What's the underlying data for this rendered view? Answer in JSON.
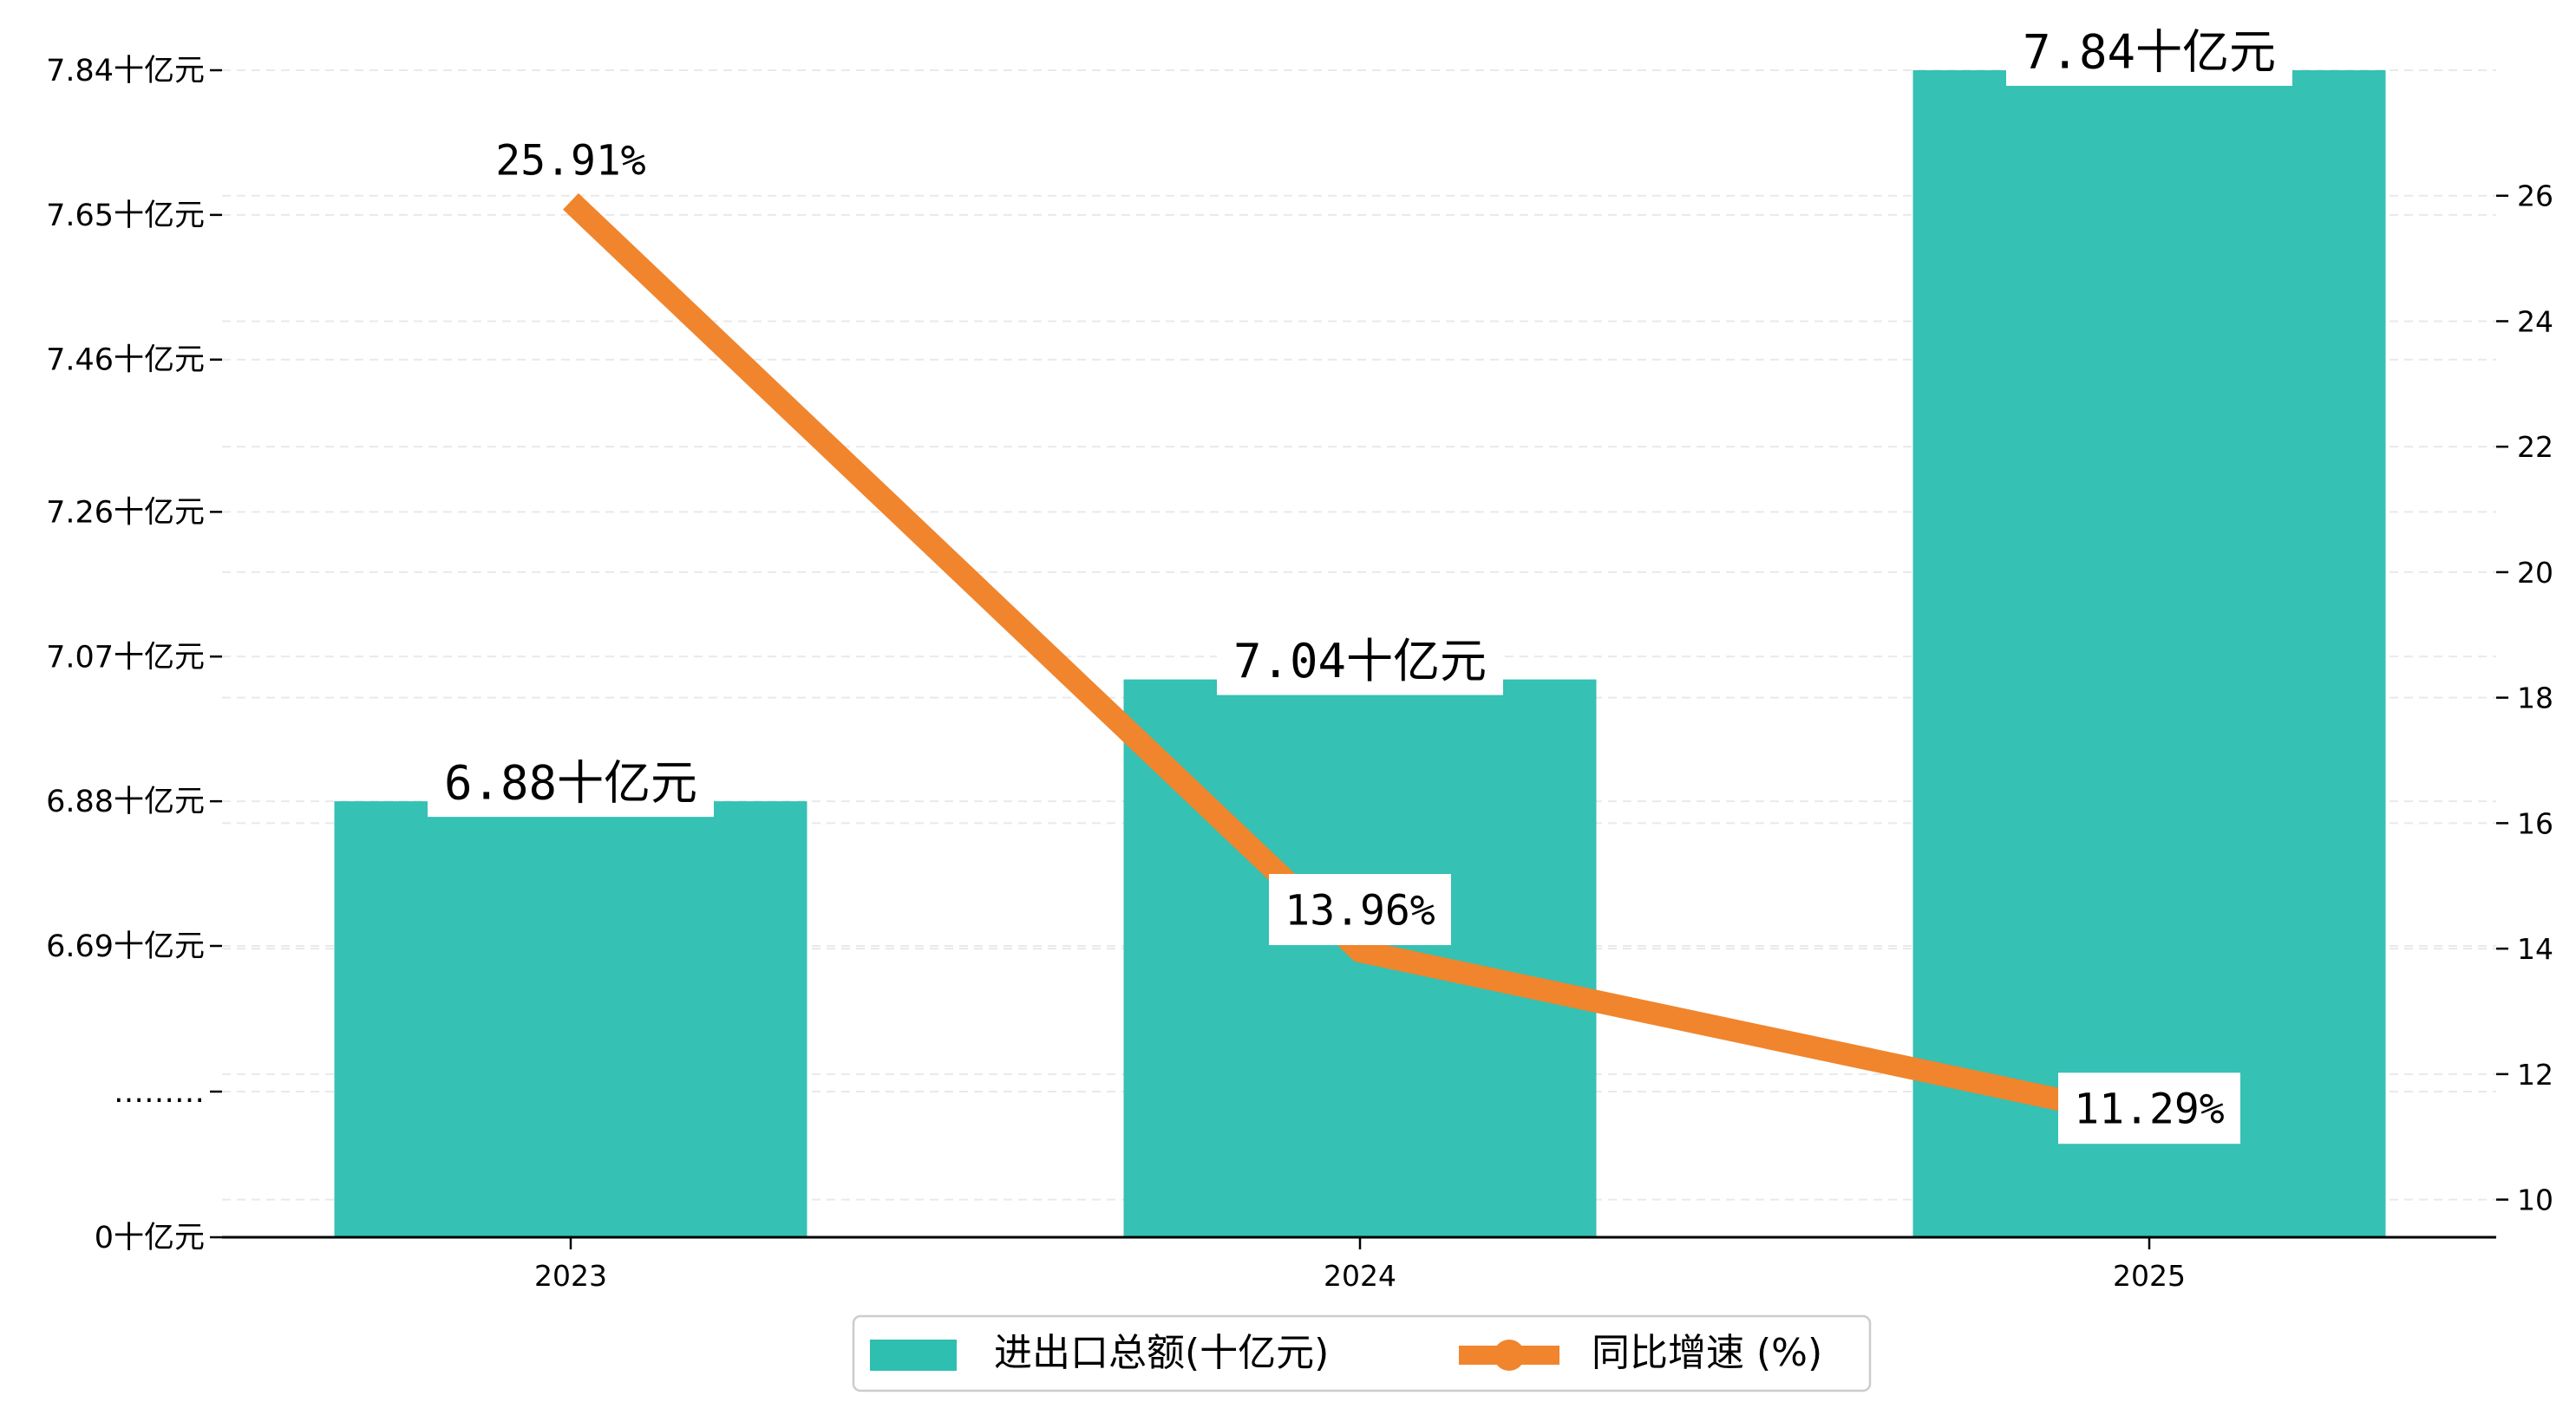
{
  "chart_data": {
    "type": "bar",
    "categories": [
      "2023",
      "2024",
      "2025"
    ],
    "series": [
      {
        "name": "进出口总额(十亿元)",
        "type": "bar",
        "axis": "left",
        "values": [
          6.88,
          7.04,
          7.84
        ],
        "labels": [
          "6.88十亿元",
          "7.04十亿元",
          "7.84十亿元"
        ],
        "color": "#2ebfb1"
      },
      {
        "name": "同比增速 (%)",
        "type": "line",
        "axis": "right",
        "values": [
          25.91,
          13.96,
          11.29
        ],
        "labels": [
          "25.91%",
          "13.96%",
          "11.29%"
        ],
        "color": "#f0852d"
      }
    ],
    "left_axis": {
      "ticks": [
        {
          "value": 0,
          "label": "0十亿元"
        },
        {
          "value": 6.6,
          "label": "………"
        },
        {
          "value": 6.69,
          "label": "6.69十亿元"
        },
        {
          "value": 6.88,
          "label": "6.88十亿元"
        },
        {
          "value": 7.07,
          "label": "7.07十亿元"
        },
        {
          "value": 7.26,
          "label": "7.26十亿元"
        },
        {
          "value": 7.46,
          "label": "7.46十亿元"
        },
        {
          "value": 7.65,
          "label": "7.65十亿元"
        },
        {
          "value": 7.84,
          "label": "7.84十亿元"
        }
      ],
      "broken": true,
      "break_between": [
        0,
        6.69
      ]
    },
    "right_axis": {
      "ylim": [
        9.4,
        28
      ],
      "ticks": [
        10,
        12,
        14,
        16,
        18,
        20,
        22,
        24,
        26
      ]
    },
    "grid": true,
    "legend": "bottom-center"
  }
}
